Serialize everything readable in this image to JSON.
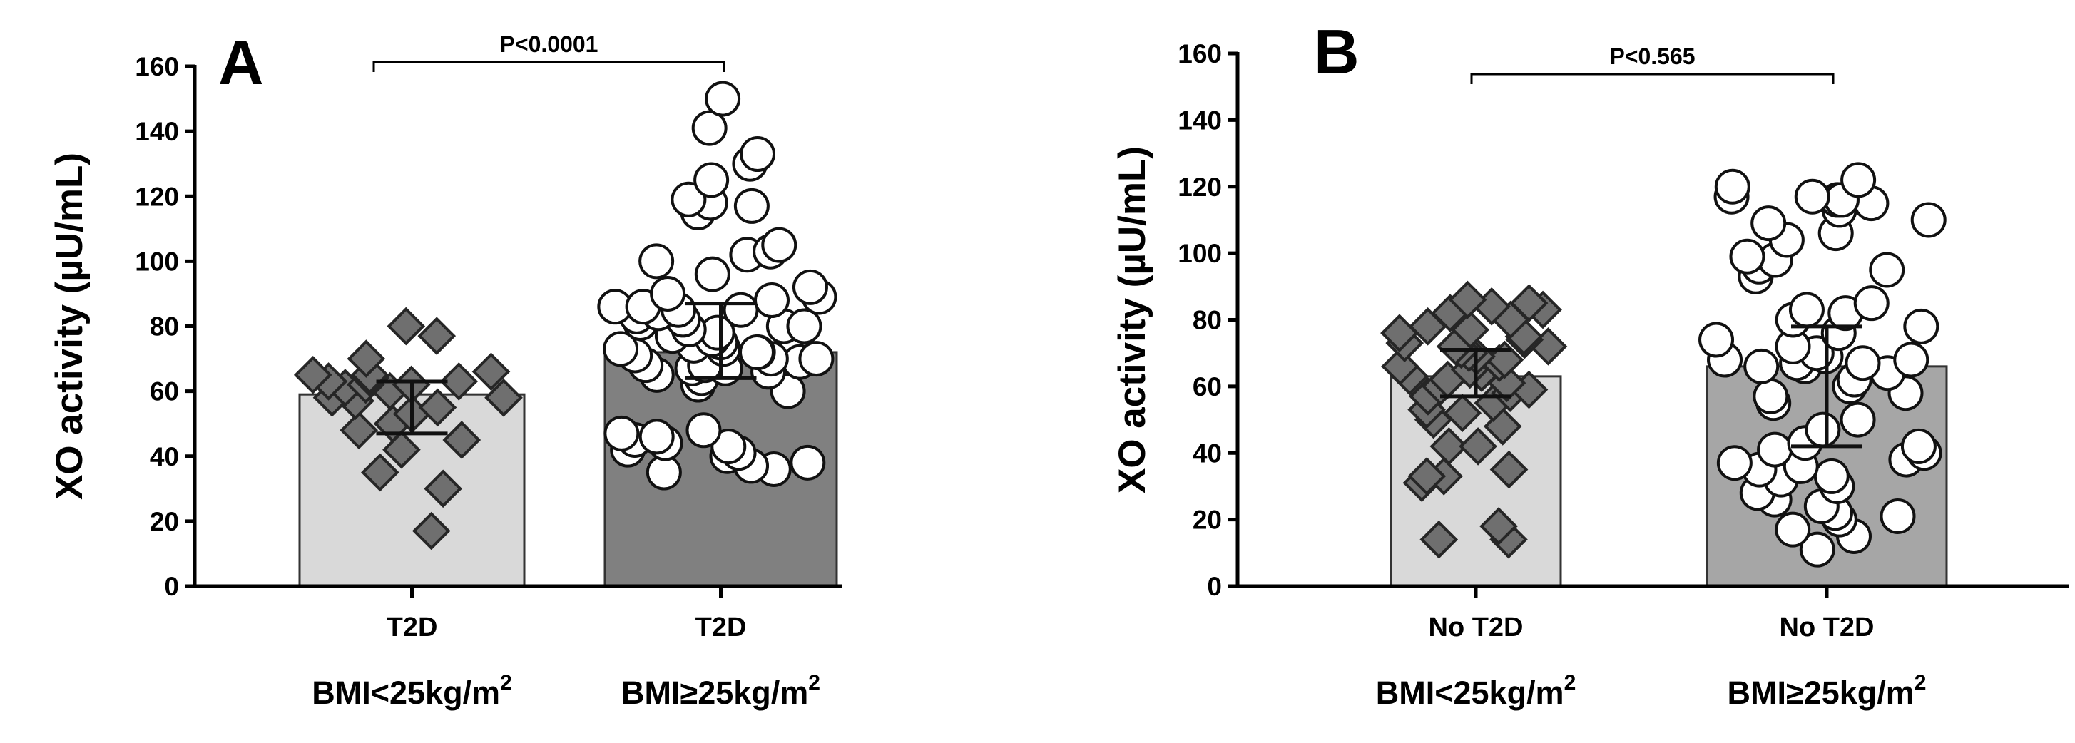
{
  "chart_data": [
    {
      "panel": "A",
      "type": "bar",
      "title": "",
      "ylabel": "XO activity (µU/mL)",
      "ylim": [
        0,
        160
      ],
      "y_ticks": [
        "0",
        "20",
        "40",
        "60",
        "80",
        "100",
        "120",
        "140",
        "160"
      ],
      "significance": "P<0.0001",
      "categories": [
        "T2D",
        "T2D"
      ],
      "group_labels": [
        "BMI<25kg/m",
        "BMI≥25kg/m"
      ],
      "group_superscript": "2",
      "bars": [
        {
          "value": 59,
          "err_low": 47,
          "err_high": 63,
          "fill": "#d9d9d9",
          "marker": "diamond",
          "points": [
            17,
            30,
            35,
            42,
            45,
            48,
            50,
            53,
            55,
            57,
            58,
            58,
            60,
            61,
            62,
            62,
            63,
            63,
            64,
            65,
            65,
            66,
            70,
            77,
            80
          ]
        },
        {
          "value": 72,
          "err_low": 64,
          "err_high": 87,
          "fill": "#808080",
          "marker": "circle",
          "points": [
            35,
            36,
            37,
            38,
            40,
            41,
            42,
            43,
            44,
            45,
            46,
            47,
            48,
            60,
            62,
            64,
            65,
            66,
            67,
            67,
            68,
            68,
            69,
            70,
            70,
            71,
            72,
            72,
            73,
            73,
            74,
            75,
            76,
            77,
            78,
            79,
            80,
            80,
            81,
            82,
            83,
            84,
            85,
            85,
            86,
            86,
            88,
            89,
            90,
            92,
            96,
            100,
            102,
            103,
            105,
            115,
            117,
            118,
            119,
            125,
            130,
            133,
            141,
            150
          ]
        }
      ]
    },
    {
      "panel": "B",
      "type": "bar",
      "title": "",
      "ylabel": "XO activity (µU/mL)",
      "ylim": [
        0,
        160
      ],
      "y_ticks": [
        "0",
        "20",
        "40",
        "60",
        "80",
        "100",
        "120",
        "140",
        "160"
      ],
      "significance": "P<0.565",
      "categories": [
        "No T2D",
        "No T2D"
      ],
      "group_labels": [
        "BMI<25kg/m",
        "BMI≥25kg/m"
      ],
      "group_superscript": "2",
      "bars": [
        {
          "value": 63,
          "err_low": 57,
          "err_high": 71,
          "fill": "#d9d9d9",
          "marker": "diamond",
          "points": [
            14,
            14,
            18,
            31,
            33,
            33,
            35,
            42,
            42,
            48,
            50,
            52,
            53,
            55,
            57,
            58,
            59,
            60,
            61,
            62,
            63,
            64,
            65,
            66,
            67,
            68,
            69,
            70,
            71,
            72,
            72,
            73,
            74,
            75,
            76,
            77,
            78,
            80,
            82,
            83,
            84,
            85,
            86
          ]
        },
        {
          "value": 66,
          "err_low": 42,
          "err_high": 78,
          "fill": "#a6a6a6",
          "marker": "circle",
          "points": [
            11,
            15,
            17,
            20,
            21,
            22,
            24,
            26,
            28,
            30,
            32,
            33,
            35,
            36,
            37,
            38,
            40,
            41,
            42,
            43,
            47,
            50,
            55,
            57,
            58,
            60,
            62,
            64,
            66,
            66,
            67,
            67,
            68,
            68,
            69,
            70,
            72,
            74,
            76,
            78,
            80,
            82,
            83,
            85,
            93,
            95,
            96,
            98,
            99,
            104,
            106,
            109,
            110,
            113,
            115,
            116,
            116,
            117,
            117,
            120,
            122
          ]
        }
      ]
    }
  ]
}
